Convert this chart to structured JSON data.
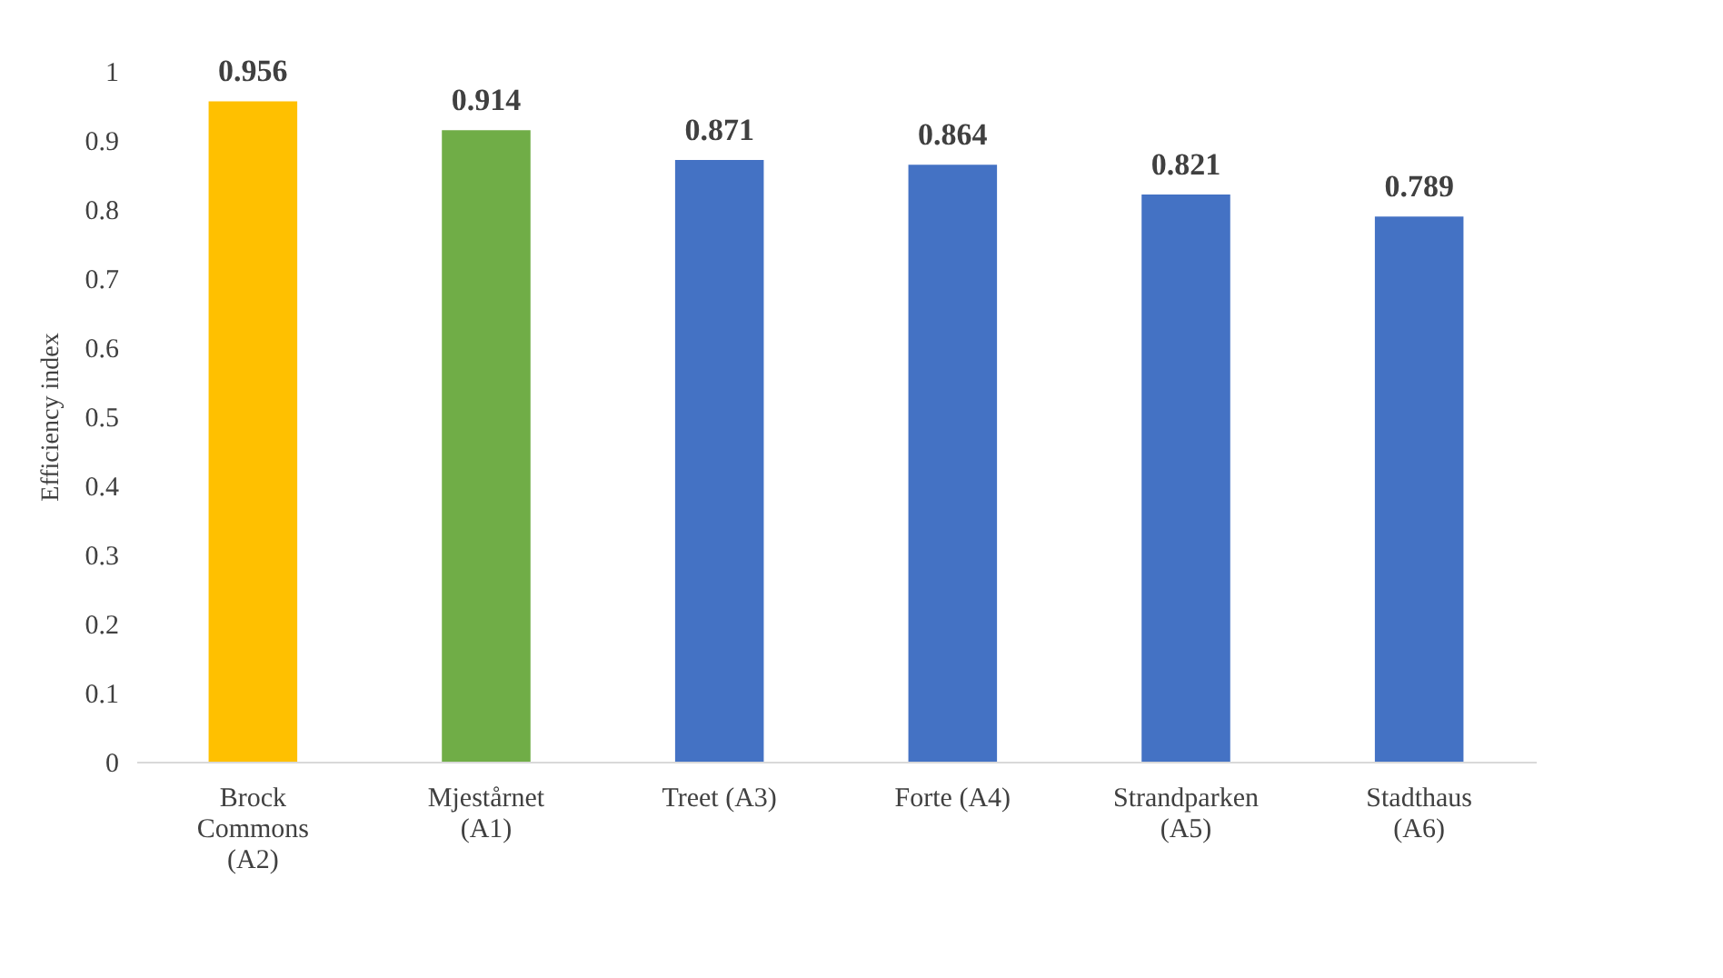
{
  "chart_data": {
    "type": "bar",
    "ylabel": "Efficiency index",
    "categories": [
      "Brock Commons (A2)",
      "Mjestårnet (A1)",
      "Treet (A3)",
      "Forte (A4)",
      "Strandparken (A5)",
      "Stadthaus (A6)"
    ],
    "values": [
      0.956,
      0.914,
      0.871,
      0.864,
      0.821,
      0.789
    ],
    "colors": [
      "#ffc000",
      "#70ad47",
      "#4472c4",
      "#4472c4",
      "#4472c4",
      "#4472c4"
    ],
    "ylim": [
      0,
      1
    ],
    "yticks": [
      0,
      0.1,
      0.2,
      0.3,
      0.4,
      0.5,
      0.6,
      0.7,
      0.8,
      0.9,
      1
    ],
    "data_labels": true
  }
}
